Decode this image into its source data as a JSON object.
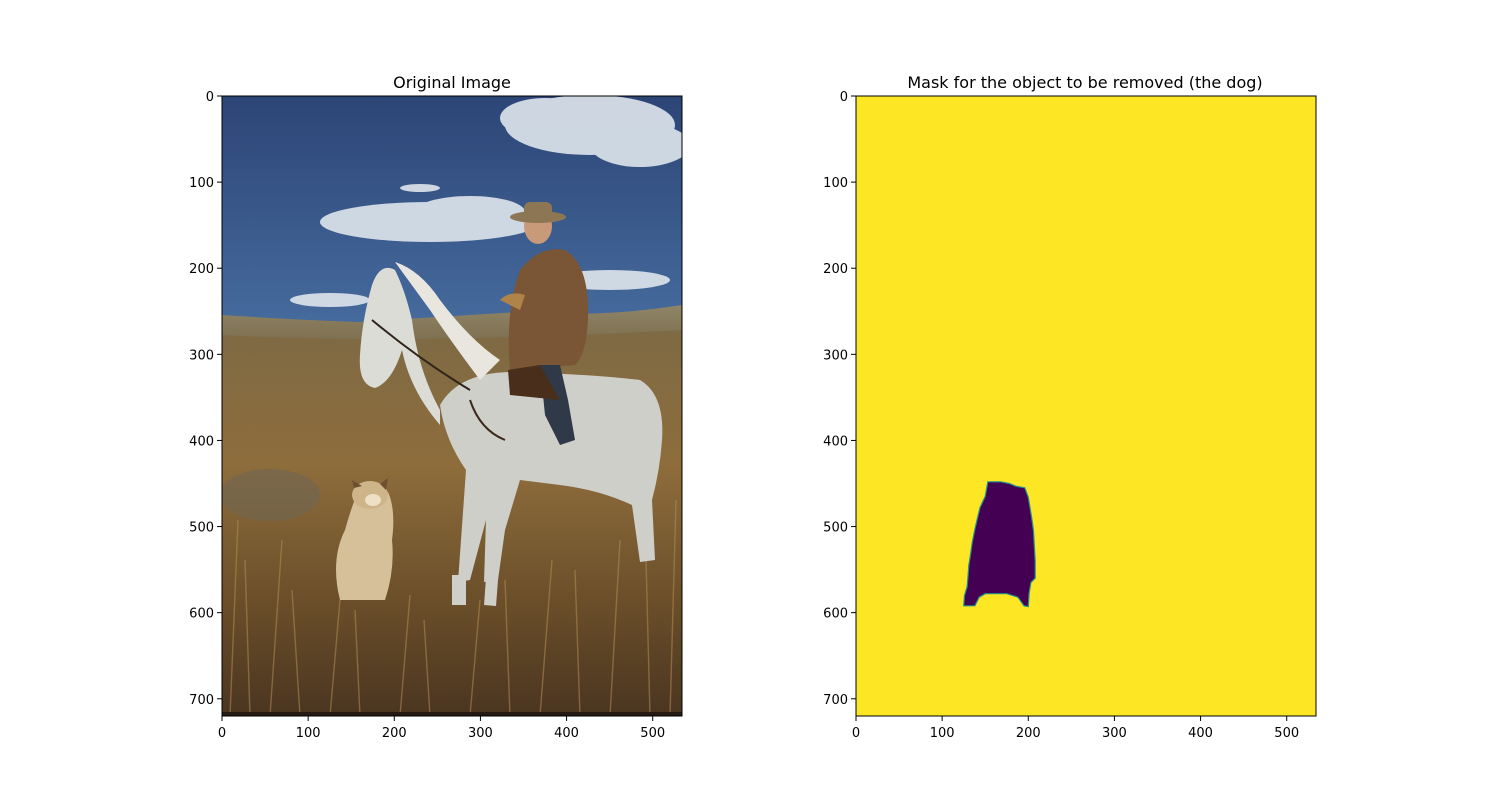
{
  "chart_data": [
    {
      "type": "image",
      "title": "Original Image",
      "image_size": {
        "width": 534,
        "height": 720
      },
      "xlim": [
        0,
        534
      ],
      "ylim": [
        720,
        0
      ],
      "x_ticks": [
        0,
        100,
        200,
        300,
        400,
        500
      ],
      "y_ticks": [
        0,
        100,
        200,
        300,
        400,
        500,
        600,
        700
      ],
      "content": [
        "sky-with-clouds",
        "rolling-hills",
        "dry-grass-field",
        "white-horse",
        "rider-in-hat-and-jacket",
        "sitting-dog"
      ]
    },
    {
      "type": "heatmap",
      "title": "Mask for the object to be removed (the dog)",
      "image_size": {
        "width": 534,
        "height": 720
      },
      "xlim": [
        0,
        534
      ],
      "ylim": [
        720,
        0
      ],
      "x_ticks": [
        0,
        100,
        200,
        300,
        400,
        500
      ],
      "y_ticks": [
        0,
        100,
        200,
        300,
        400,
        500,
        600,
        700
      ],
      "colormap": "viridis",
      "background_value": 1,
      "object_value": 0,
      "background_color": "#fde725",
      "object_color": "#440154",
      "edge_color": "#21918c",
      "mask_region": {
        "left_edge": [
          [
            153,
            448
          ],
          [
            150,
            465
          ],
          [
            144,
            478
          ],
          [
            141,
            490
          ],
          [
            138,
            503
          ],
          [
            135,
            518
          ],
          [
            133,
            532
          ],
          [
            131,
            545
          ],
          [
            130,
            558
          ],
          [
            129,
            570
          ],
          [
            126,
            580
          ],
          [
            125,
            592
          ]
        ],
        "bottom_edge": [
          [
            125,
            592
          ],
          [
            138,
            592
          ],
          [
            143,
            582
          ],
          [
            150,
            578
          ],
          [
            175,
            578
          ],
          [
            188,
            582
          ],
          [
            195,
            592
          ],
          [
            200,
            593
          ]
        ],
        "right_edge": [
          [
            200,
            593
          ],
          [
            201,
            578
          ],
          [
            203,
            565
          ],
          [
            208,
            560
          ],
          [
            208,
            540
          ],
          [
            207,
            522
          ],
          [
            206,
            505
          ],
          [
            204,
            490
          ],
          [
            202,
            478
          ],
          [
            200,
            466
          ],
          [
            196,
            455
          ]
        ],
        "top_edge": [
          [
            196,
            455
          ],
          [
            185,
            453
          ],
          [
            178,
            450
          ],
          [
            168,
            448
          ],
          [
            153,
            448
          ]
        ]
      }
    }
  ]
}
